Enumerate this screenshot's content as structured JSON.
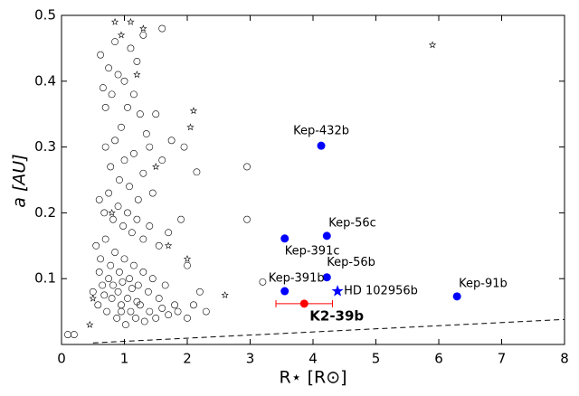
{
  "chart_data": {
    "type": "scatter",
    "xlabel": "R⋆ [R⊙]",
    "ylabel": "a [AU]",
    "xlim": [
      0,
      8
    ],
    "ylim": [
      0,
      0.5
    ],
    "xticks": [
      0,
      1,
      2,
      3,
      4,
      5,
      6,
      7,
      8
    ],
    "yticks": [
      0.1,
      0.2,
      0.3,
      0.4,
      0.5
    ],
    "grid": false,
    "reference_line": {
      "x": [
        0.5,
        8
      ],
      "values": [
        0.0024,
        0.038
      ],
      "style": "dashed",
      "color": "#000000"
    },
    "series": [
      {
        "marker": "circle-open",
        "color": "#000000",
        "x": [
          0.62,
          0.66,
          0.7,
          0.75,
          0.8,
          0.85,
          0.9,
          0.95,
          1.0,
          1.05,
          1.1,
          1.15,
          1.2,
          1.25,
          1.3,
          1.35,
          1.4,
          1.5,
          1.6,
          1.75,
          0.7,
          0.78,
          0.85,
          0.92,
          1.0,
          1.08,
          1.15,
          1.22,
          1.3,
          1.45,
          0.6,
          0.68,
          0.75,
          0.82,
          0.9,
          0.98,
          1.05,
          1.12,
          1.2,
          1.3,
          1.4,
          1.55,
          1.7,
          1.9,
          0.55,
          0.62,
          0.7,
          0.78,
          0.85,
          0.92,
          1.0,
          1.08,
          1.15,
          1.22,
          1.3,
          1.38,
          1.45,
          1.55,
          1.65,
          1.8,
          0.5,
          0.58,
          0.65,
          0.72,
          0.8,
          0.88,
          0.95,
          1.02,
          1.1,
          1.18,
          1.25,
          1.32,
          1.4,
          1.5,
          1.6,
          1.7,
          1.85,
          2.0,
          2.1,
          2.3,
          0.75,
          0.82,
          0.9,
          0.97,
          1.05,
          1.12,
          0.68,
          0.6,
          1.2,
          0.95,
          2.95,
          2.95,
          2.15,
          3.2,
          0.1,
          0.2,
          2.0,
          2.2,
          1.95,
          1.6
        ],
        "values": [
          0.44,
          0.39,
          0.36,
          0.42,
          0.38,
          0.46,
          0.41,
          0.33,
          0.4,
          0.36,
          0.45,
          0.38,
          0.43,
          0.35,
          0.47,
          0.32,
          0.3,
          0.35,
          0.28,
          0.31,
          0.3,
          0.27,
          0.31,
          0.25,
          0.28,
          0.24,
          0.29,
          0.22,
          0.26,
          0.23,
          0.22,
          0.2,
          0.23,
          0.19,
          0.21,
          0.18,
          0.2,
          0.17,
          0.19,
          0.16,
          0.18,
          0.15,
          0.17,
          0.19,
          0.15,
          0.13,
          0.16,
          0.12,
          0.14,
          0.11,
          0.13,
          0.1,
          0.12,
          0.09,
          0.11,
          0.08,
          0.1,
          0.07,
          0.09,
          0.06,
          0.08,
          0.06,
          0.09,
          0.05,
          0.07,
          0.04,
          0.06,
          0.03,
          0.05,
          0.04,
          0.06,
          0.035,
          0.05,
          0.04,
          0.055,
          0.045,
          0.05,
          0.04,
          0.06,
          0.05,
          0.1,
          0.09,
          0.08,
          0.095,
          0.07,
          0.085,
          0.075,
          0.11,
          0.065,
          0.05,
          0.27,
          0.19,
          0.262,
          0.095,
          0.015,
          0.015,
          0.12,
          0.08,
          0.3,
          0.48
        ]
      },
      {
        "marker": "star-open",
        "color": "#000000",
        "x": [
          0.85,
          0.95,
          1.1,
          1.3,
          2.1,
          2.05,
          5.9,
          2.6,
          1.5,
          1.7,
          0.5,
          0.45,
          2.0,
          1.2,
          0.8
        ],
        "values": [
          0.49,
          0.47,
          0.49,
          0.48,
          0.355,
          0.33,
          0.455,
          0.075,
          0.27,
          0.15,
          0.07,
          0.03,
          0.13,
          0.41,
          0.2
        ]
      },
      {
        "marker": "circle",
        "color": "#0000ff",
        "x": [
          4.13,
          4.22,
          3.55,
          4.22,
          3.55,
          6.29
        ],
        "values": [
          0.302,
          0.165,
          0.161,
          0.102,
          0.081,
          0.073
        ],
        "labels": [
          "Kep-432b",
          "Kep-56c",
          "Kep-391c",
          "Kep-56b",
          "Kep-391b",
          "Kep-91b"
        ]
      },
      {
        "marker": "star",
        "color": "#0000ff",
        "x": [
          4.39
        ],
        "values": [
          0.081
        ],
        "labels": [
          "HD 102956b"
        ]
      },
      {
        "marker": "circle",
        "color": "#ff0000",
        "bold": true,
        "x": [
          3.86
        ],
        "values": [
          0.062
        ],
        "xerr": [
          0.45
        ],
        "labels": [
          "K2-39b"
        ]
      }
    ]
  }
}
